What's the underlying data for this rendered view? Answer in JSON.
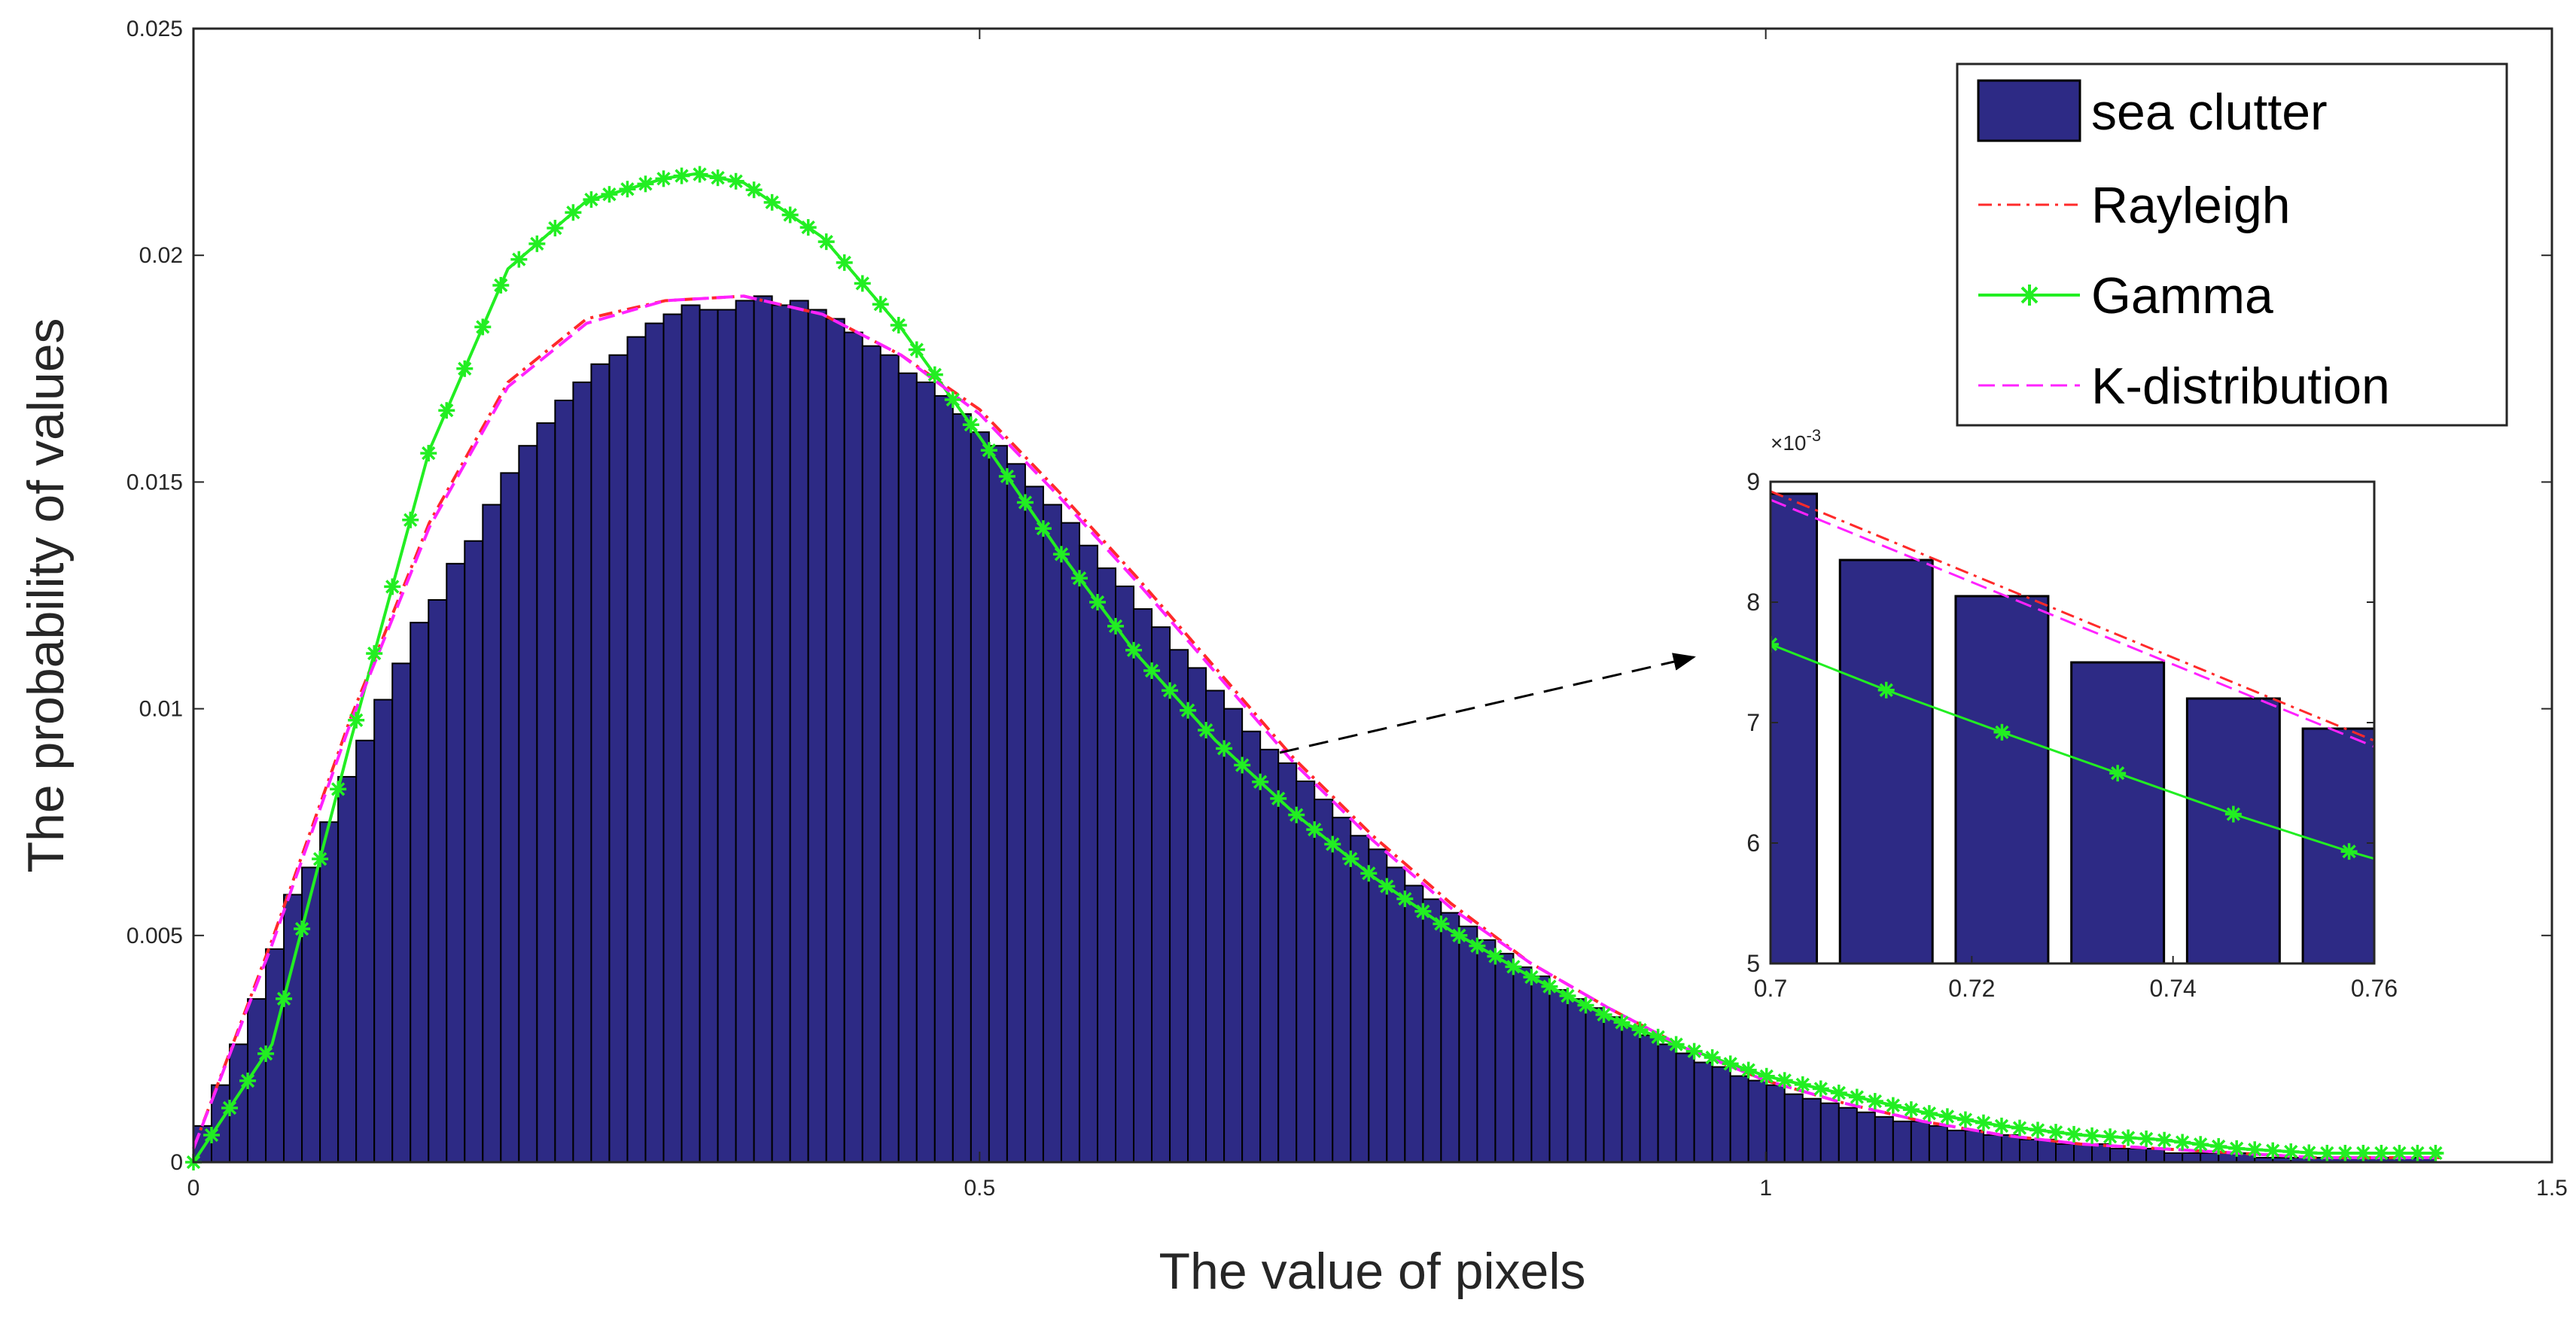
{
  "colors": {
    "bar_fill": "#2d2a85",
    "bar_edge": "#000000",
    "rayleigh": "#ff2a2a",
    "gamma": "#22ee22",
    "kdist": "#ff22ff",
    "axis": "#262626"
  },
  "chart_data": [
    {
      "type": "bar",
      "role": "main",
      "title": "",
      "xlabel": "The value of pixels",
      "ylabel": "The probability of values",
      "xlim": [
        0,
        1.5
      ],
      "ylim": [
        0,
        0.025
      ],
      "xticks": [
        0,
        0.5,
        1,
        1.5
      ],
      "xtick_labels": [
        "0",
        "0.5",
        "1",
        "1.5"
      ],
      "yticks": [
        0,
        0.005,
        0.01,
        0.015,
        0.02,
        0.025
      ],
      "ytick_labels": [
        "0",
        "0.005",
        "0.01",
        "0.015",
        "0.02",
        "0.025"
      ],
      "grid": false,
      "legend": {
        "position": "top-right",
        "entries": [
          "sea clutter",
          "Rayleigh",
          "Gamma",
          "K-distribution"
        ]
      },
      "histogram": {
        "name": "sea clutter",
        "bin_start": 0,
        "bin_width": 0.0115,
        "values": [
          0.0008,
          0.0017,
          0.0026,
          0.0036,
          0.0047,
          0.0059,
          0.0065,
          0.0075,
          0.0085,
          0.0093,
          0.0102,
          0.011,
          0.0119,
          0.0124,
          0.0132,
          0.0137,
          0.0145,
          0.0152,
          0.0158,
          0.0163,
          0.0168,
          0.0172,
          0.0176,
          0.0178,
          0.0182,
          0.0185,
          0.0187,
          0.0189,
          0.0188,
          0.0188,
          0.019,
          0.0191,
          0.0189,
          0.019,
          0.0188,
          0.0186,
          0.0183,
          0.018,
          0.0178,
          0.0174,
          0.0172,
          0.0169,
          0.0165,
          0.0161,
          0.0158,
          0.0154,
          0.0149,
          0.0145,
          0.0141,
          0.0136,
          0.0131,
          0.0127,
          0.0122,
          0.0118,
          0.0113,
          0.0109,
          0.0104,
          0.01,
          0.0095,
          0.0091,
          0.0088,
          0.0084,
          0.008,
          0.0076,
          0.0072,
          0.0069,
          0.0065,
          0.0061,
          0.0058,
          0.0055,
          0.0052,
          0.0049,
          0.0046,
          0.0043,
          0.0041,
          0.0038,
          0.0036,
          0.0034,
          0.0032,
          0.003,
          0.0028,
          0.0026,
          0.0024,
          0.0022,
          0.0021,
          0.0019,
          0.0018,
          0.0017,
          0.0015,
          0.0014,
          0.0013,
          0.0012,
          0.0011,
          0.001,
          0.0009,
          0.0009,
          0.0008,
          0.0007,
          0.0007,
          0.0006,
          0.0006,
          0.0005,
          0.0005,
          0.0004,
          0.0004,
          0.0004,
          0.0003,
          0.0003,
          0.0003,
          0.0002,
          0.0002,
          0.0002,
          0.0002,
          0.0002,
          0.0001,
          0.0001,
          0.0001,
          0.0001,
          0.0001,
          0.0001,
          0.0001,
          0.0001,
          0.0001,
          0.0001
        ]
      },
      "series": [
        {
          "name": "Rayleigh",
          "x": [
            0,
            0.05,
            0.1,
            0.15,
            0.2,
            0.25,
            0.3,
            0.35,
            0.4,
            0.45,
            0.5,
            0.55,
            0.6,
            0.65,
            0.7,
            0.75,
            0.8,
            0.85,
            0.9,
            0.95,
            1.0,
            1.05,
            1.1,
            1.15,
            1.2,
            1.25,
            1.3,
            1.35,
            1.4,
            1.43
          ],
          "values": [
            0.0003,
            0.0049,
            0.0098,
            0.0141,
            0.0172,
            0.0186,
            0.019,
            0.0191,
            0.0187,
            0.0178,
            0.0166,
            0.0148,
            0.0129,
            0.0109,
            0.0089,
            0.0072,
            0.0057,
            0.0044,
            0.0034,
            0.0025,
            0.0018,
            0.0013,
            0.0009,
            0.0006,
            0.0004,
            0.0003,
            0.0002,
            0.0001,
            0.0001,
            0.0001
          ]
        },
        {
          "name": "Gamma",
          "x": [
            0,
            0.05,
            0.1,
            0.15,
            0.2,
            0.25,
            0.3,
            0.32,
            0.35,
            0.4,
            0.45,
            0.5,
            0.55,
            0.6,
            0.65,
            0.7,
            0.75,
            0.8,
            0.85,
            0.9,
            0.95,
            1.0,
            1.05,
            1.1,
            1.15,
            1.2,
            1.25,
            1.3,
            1.35,
            1.4,
            1.43
          ],
          "values": [
            0.0,
            0.0026,
            0.0093,
            0.0157,
            0.0197,
            0.0212,
            0.0217,
            0.0218,
            0.0216,
            0.0204,
            0.0184,
            0.016,
            0.0135,
            0.0112,
            0.0093,
            0.0077,
            0.0063,
            0.0051,
            0.0041,
            0.0032,
            0.0025,
            0.0019,
            0.0015,
            0.0011,
            0.0008,
            0.0006,
            0.0005,
            0.0003,
            0.0002,
            0.0002,
            0.0002
          ]
        },
        {
          "name": "K-distribution",
          "x": [
            0,
            0.05,
            0.1,
            0.15,
            0.2,
            0.25,
            0.3,
            0.35,
            0.4,
            0.45,
            0.5,
            0.55,
            0.6,
            0.65,
            0.7,
            0.75,
            0.8,
            0.85,
            0.9,
            0.95,
            1.0,
            1.05,
            1.1,
            1.15,
            1.2,
            1.25,
            1.3,
            1.35,
            1.4,
            1.43
          ],
          "values": [
            0.0003,
            0.0048,
            0.0097,
            0.014,
            0.0171,
            0.0185,
            0.019,
            0.0191,
            0.0187,
            0.0178,
            0.0165,
            0.0147,
            0.0128,
            0.0108,
            0.0088,
            0.0071,
            0.0056,
            0.0044,
            0.0034,
            0.0025,
            0.0018,
            0.0013,
            0.0009,
            0.0006,
            0.0004,
            0.0003,
            0.0002,
            0.0001,
            0.0001,
            0.0001
          ]
        }
      ],
      "annotation": {
        "type": "arrow",
        "from": [
          0.7,
          0.0091
        ],
        "to_target": "inset"
      }
    },
    {
      "type": "bar",
      "role": "inset",
      "xlim": [
        0.7,
        0.76
      ],
      "ylim": [
        5,
        9
      ],
      "y_multiplier_label": "×10",
      "y_multiplier_exponent": "-3",
      "xticks": [
        0.7,
        0.72,
        0.74,
        0.76
      ],
      "xtick_labels": [
        "0.7",
        "0.72",
        "0.74",
        "0.76"
      ],
      "yticks": [
        5,
        6,
        7,
        8,
        9
      ],
      "ytick_labels": [
        "5",
        "6",
        "7",
        "8",
        "9"
      ],
      "bars": {
        "bin_width": 0.0115,
        "gap_ratio": 0.2,
        "centers": [
          0.7,
          0.7115,
          0.723,
          0.7345,
          0.746,
          0.7575
        ],
        "values": [
          8.9,
          8.35,
          8.05,
          7.5,
          7.2,
          6.95
        ]
      },
      "series": [
        {
          "name": "Rayleigh",
          "x": [
            0.7,
            0.76
          ],
          "values": [
            8.92,
            6.85
          ]
        },
        {
          "name": "K-distribution",
          "x": [
            0.7,
            0.76
          ],
          "values": [
            8.85,
            6.8
          ]
        },
        {
          "name": "Gamma",
          "x": [
            0.7,
            0.7115,
            0.723,
            0.7345,
            0.746,
            0.7575,
            0.76
          ],
          "values": [
            7.65,
            7.27,
            6.92,
            6.58,
            6.24,
            5.93,
            5.87
          ]
        }
      ]
    }
  ]
}
